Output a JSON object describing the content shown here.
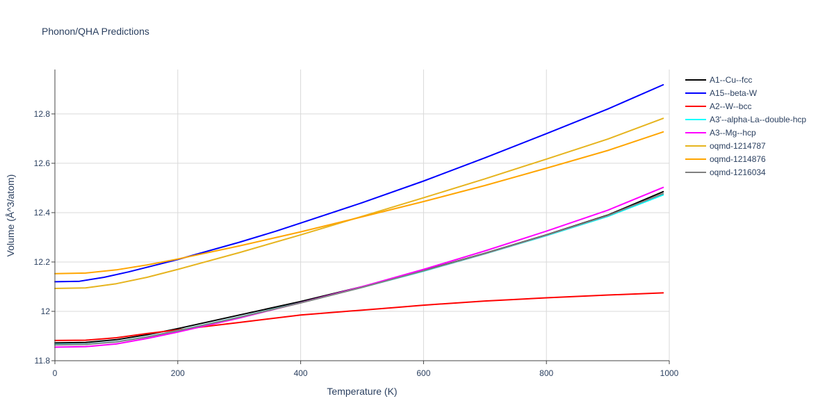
{
  "chart_data": {
    "type": "line",
    "title": "Phonon/QHA Predictions",
    "xlabel": "Temperature (K)",
    "ylabel": "Volume (Å^3/atom)",
    "xlim": [
      0,
      1000
    ],
    "ylim": [
      11.8,
      12.98
    ],
    "xticks": [
      0,
      200,
      400,
      600,
      800,
      1000
    ],
    "xtick_labels": [
      "0",
      "200",
      "400",
      "600",
      "800",
      "1000"
    ],
    "yticks": [
      11.8,
      12.0,
      12.2,
      12.4,
      12.6,
      12.8
    ],
    "ytick_labels": [
      "11.8",
      "12",
      "12.2",
      "12.4",
      "12.6",
      "12.8"
    ],
    "grid": true,
    "legend_position": "right",
    "series": [
      {
        "name": "A1--Cu--fcc",
        "color": "#000000",
        "x": [
          0,
          50,
          100,
          150,
          200,
          300,
          400,
          500,
          600,
          700,
          800,
          900,
          990
        ],
        "y": [
          11.872,
          11.874,
          11.885,
          11.905,
          11.93,
          11.985,
          12.04,
          12.1,
          12.165,
          12.235,
          12.31,
          12.39,
          12.485
        ]
      },
      {
        "name": "A15--beta-W",
        "color": "#0000ff",
        "x": [
          0,
          40,
          80,
          120,
          160,
          200,
          300,
          360,
          400,
          500,
          600,
          700,
          800,
          900,
          990
        ],
        "y": [
          12.12,
          12.122,
          12.138,
          12.16,
          12.185,
          12.21,
          12.28,
          12.325,
          12.358,
          12.44,
          12.528,
          12.622,
          12.72,
          12.82,
          12.918
        ]
      },
      {
        "name": "A2--W--bcc",
        "color": "#ff0000",
        "x": [
          0,
          50,
          100,
          150,
          200,
          250,
          300,
          400,
          500,
          550,
          600,
          700,
          800,
          900,
          990
        ],
        "y": [
          11.882,
          11.883,
          11.893,
          11.91,
          11.925,
          11.94,
          11.955,
          11.985,
          12.005,
          12.015,
          12.025,
          12.042,
          12.055,
          12.066,
          12.075
        ]
      },
      {
        "name": "A3'--alpha-La--double-hcp",
        "color": "#00ffff",
        "x": [
          0,
          50,
          100,
          150,
          200,
          300,
          400,
          500,
          600,
          700,
          800,
          900,
          990
        ],
        "y": [
          11.866,
          11.867,
          11.877,
          11.897,
          11.922,
          11.977,
          12.035,
          12.097,
          12.163,
          12.233,
          12.307,
          12.385,
          12.472
        ]
      },
      {
        "name": "A3--Mg--hcp",
        "color": "#ff00ff",
        "x": [
          0,
          50,
          100,
          150,
          200,
          300,
          400,
          500,
          600,
          700,
          800,
          900,
          990
        ],
        "y": [
          11.855,
          11.857,
          11.868,
          11.89,
          11.916,
          11.973,
          12.035,
          12.1,
          12.17,
          12.245,
          12.325,
          12.41,
          12.502
        ]
      },
      {
        "name": "oqmd-1214787",
        "color": "#e6b41e",
        "x": [
          0,
          50,
          100,
          150,
          200,
          300,
          400,
          500,
          600,
          700,
          800,
          900,
          990
        ],
        "y": [
          12.093,
          12.095,
          12.112,
          12.138,
          12.17,
          12.238,
          12.31,
          12.385,
          12.46,
          12.537,
          12.617,
          12.698,
          12.782
        ]
      },
      {
        "name": "oqmd-1214876",
        "color": "#ffa500",
        "x": [
          0,
          50,
          100,
          150,
          200,
          300,
          400,
          500,
          600,
          700,
          800,
          900,
          990
        ],
        "y": [
          12.153,
          12.155,
          12.168,
          12.188,
          12.212,
          12.265,
          12.322,
          12.383,
          12.445,
          12.51,
          12.58,
          12.652,
          12.727
        ]
      },
      {
        "name": "oqmd-1216034",
        "color": "#808080",
        "x": [
          0,
          50,
          100,
          150,
          200,
          300,
          400,
          500,
          600,
          700,
          800,
          900,
          990
        ],
        "y": [
          11.864,
          11.866,
          11.876,
          11.896,
          11.921,
          11.976,
          12.034,
          12.097,
          12.164,
          12.234,
          12.309,
          12.388,
          12.477
        ]
      }
    ]
  }
}
